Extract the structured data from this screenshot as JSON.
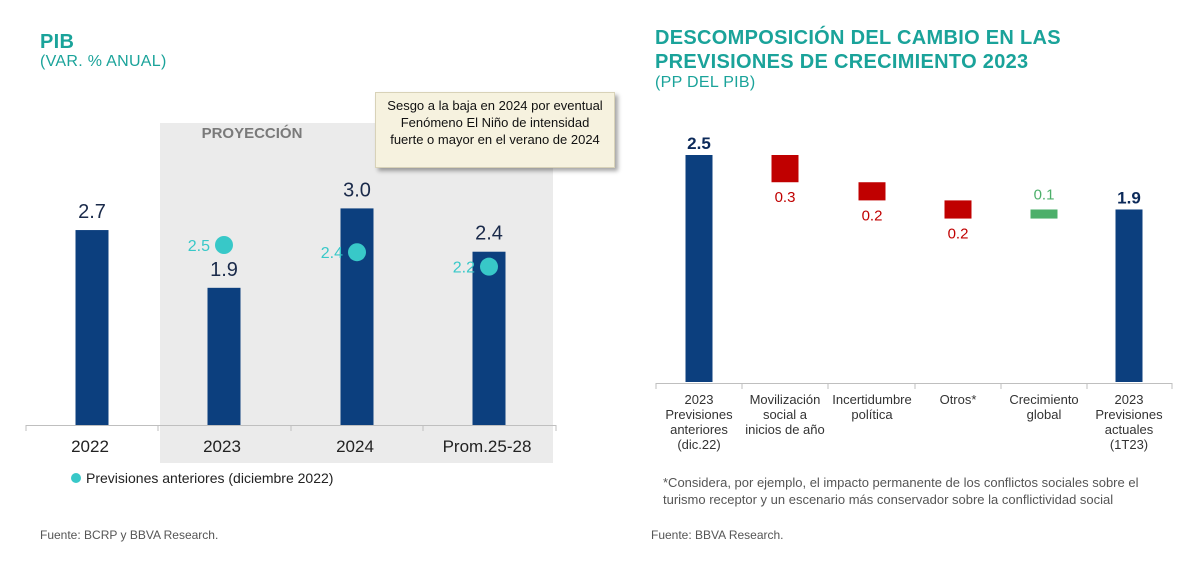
{
  "left_panel": {
    "title": "PIB",
    "subtitle": "(VAR. % ANUAL)",
    "projection_label": "PROYECCIÓN",
    "callout": "Sesgo a la baja en 2024 por eventual Fenómeno El Niño de intensidad fuerte o mayor en el verano de 2024",
    "legend_label": "Previsiones anteriores (diciembre 2022)",
    "source": "Fuente: BCRP y BBVA Research."
  },
  "right_panel": {
    "title_line1": "DESCOMPOSICIÓN DEL CAMBIO EN LAS",
    "title_line2": "PREVISIONES DE CRECIMIENTO 2023",
    "subtitle": "(PP DEL PIB)",
    "footnote": "*Considera, por ejemplo, el impacto permanente de los conflictos sociales sobre el turismo receptor y un escenario más conservador sobre la conflictividad social",
    "source": "Fuente: BBVA Research."
  },
  "colors": {
    "bar": "#0c3f7e",
    "dot": "#38c8c8",
    "negative": "#c00000",
    "positive": "#4caf6a",
    "accent": "#1aa39a",
    "shade": "#ebebeb"
  },
  "chart_data": [
    {
      "type": "bar",
      "categories": [
        "2022",
        "2023",
        "2024",
        "Prom.25-28"
      ],
      "series": [
        {
          "values": [
            2.7,
            1.9,
            3.0,
            2.4
          ]
        },
        {
          "name": "Previsiones anteriores (diciembre 2022)",
          "values": [
            null,
            2.5,
            2.4,
            2.2
          ]
        }
      ],
      "title": "PIB",
      "subtitle": "(VAR. % ANUAL)",
      "annotations": [
        "PROYECCIÓN"
      ]
    },
    {
      "type": "bar",
      "categories": [
        "2023 Previsiones anteriores (dic.22)",
        "Movilización social a inicios de año",
        "Incertidumbre política",
        "Otros*",
        "Crecimiento global",
        "2023 Previsiones actuales (1T23)"
      ],
      "category_lines": [
        [
          "2023",
          "Previsiones",
          "anteriores",
          "(dic.22)"
        ],
        [
          "Movilización",
          "social a",
          "inicios de año"
        ],
        [
          "Incertidumbre",
          "política"
        ],
        [
          "Otros*"
        ],
        [
          "Crecimiento",
          "global"
        ],
        [
          "2023",
          "Previsiones",
          "actuales",
          "(1T23)"
        ]
      ],
      "values": [
        2.5,
        -0.3,
        -0.2,
        -0.2,
        0.1,
        1.9
      ],
      "value_labels": [
        "2.5",
        "0.3",
        "0.2",
        "0.2",
        "0.1",
        "1.9"
      ],
      "title": "DESCOMPOSICIÓN DEL CAMBIO EN LAS PREVISIONES DE CRECIMIENTO 2023",
      "subtitle": "(PP DEL PIB)"
    }
  ]
}
